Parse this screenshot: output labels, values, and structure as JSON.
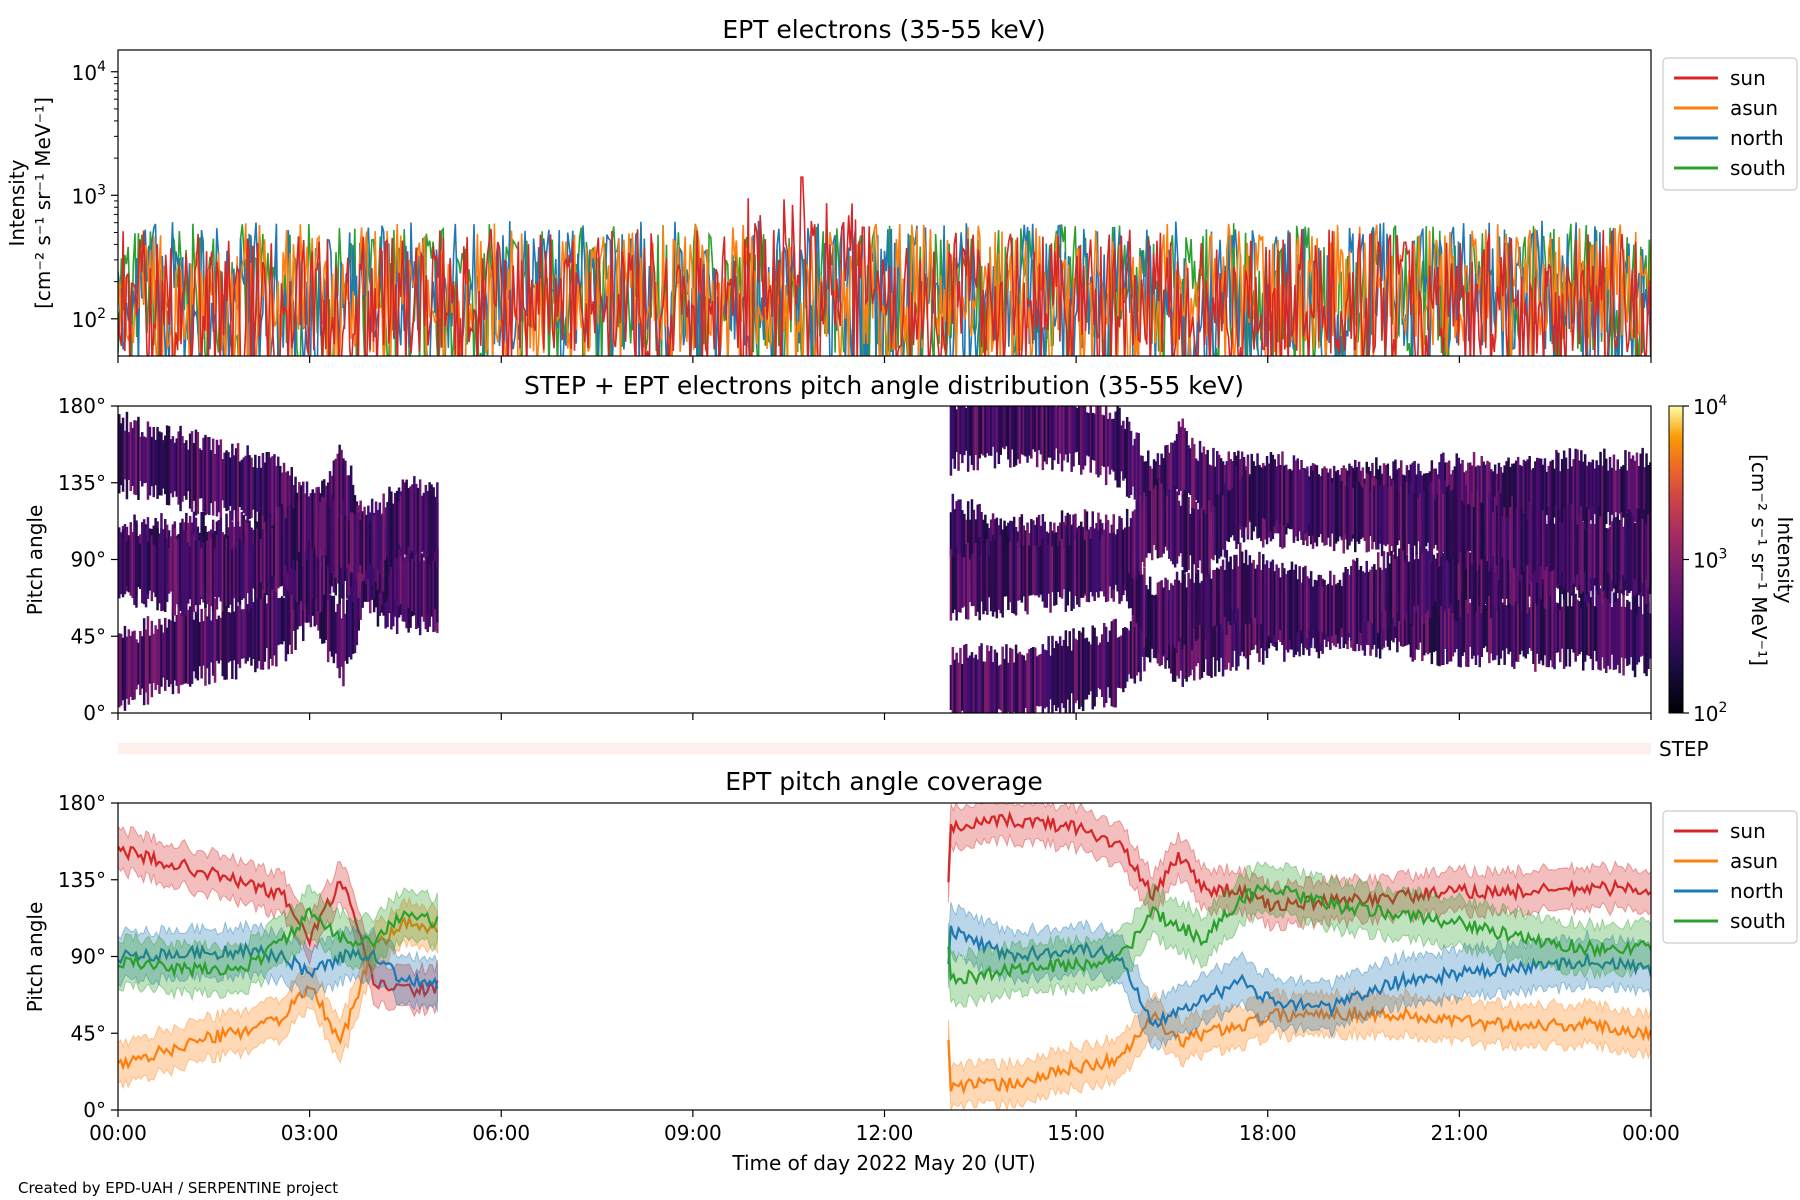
{
  "figure": {
    "credit": "Created by EPD-UAH / SERPENTINE project",
    "xlabel": "Time of day 2022 May 20 (UT)",
    "x_ticks": [
      "00:00",
      "03:00",
      "06:00",
      "09:00",
      "12:00",
      "15:00",
      "18:00",
      "21:00",
      "00:00"
    ]
  },
  "colors": {
    "sun": "#d62728",
    "asun": "#ff7f0e",
    "north": "#1f77b4",
    "south": "#2ca02c",
    "step_bar": "#fdf0ea"
  },
  "chart_data": [
    {
      "type": "line",
      "title": "EPT electrons (35-55 keV)",
      "ylabel_line1": "Intensity",
      "ylabel_line2": "[cm⁻² s⁻¹ sr⁻¹ MeV⁻¹]",
      "yscale": "log",
      "ylim": [
        50,
        15000
      ],
      "y_ticks": [
        {
          "value": 100,
          "base": "10",
          "exp": "2"
        },
        {
          "value": 1000,
          "base": "10",
          "exp": "3"
        },
        {
          "value": 10000,
          "base": "10",
          "exp": "4"
        }
      ],
      "xlim_hours": [
        0,
        24
      ],
      "legend": [
        "sun",
        "asun",
        "north",
        "south"
      ],
      "legend_position": "upper right, outside axes",
      "data_coverage_hours": [
        0,
        24
      ],
      "series": [
        {
          "name": "sun",
          "typical": 180,
          "max": 1400,
          "peak_hour": 10.7
        },
        {
          "name": "asun",
          "typical": 200,
          "max": 720
        },
        {
          "name": "north",
          "typical": 210,
          "max": 900
        },
        {
          "name": "south",
          "typical": 200,
          "max": 800
        }
      ]
    },
    {
      "type": "heatmap",
      "title": "STEP + EPT electrons pitch angle distribution (35-55 keV)",
      "ylabel": "Pitch angle",
      "ylim": [
        0,
        180
      ],
      "y_ticks": [
        "0°",
        "45°",
        "90°",
        "135°",
        "180°"
      ],
      "colorbar": {
        "label_line1": "Intensity",
        "label_line2": "[cm⁻² s⁻¹ sr⁻¹ MeV⁻¹]",
        "scale": "log",
        "range": [
          100,
          10000
        ],
        "ticks": [
          {
            "base": "10",
            "exp": "2"
          },
          {
            "base": "10",
            "exp": "3"
          },
          {
            "base": "10",
            "exp": "4"
          }
        ],
        "colormap": "inferno"
      },
      "data_gaps_hours": [
        [
          5.0,
          13.0
        ]
      ]
    },
    {
      "type": "bar",
      "label": "STEP",
      "note": "empty STEP coverage strip"
    },
    {
      "type": "area",
      "title": "EPT pitch angle coverage",
      "ylabel": "Pitch angle",
      "ylim": [
        0,
        180
      ],
      "y_ticks": [
        "0°",
        "45°",
        "90°",
        "135°",
        "180°"
      ],
      "legend": [
        "sun",
        "asun",
        "north",
        "south"
      ],
      "legend_position": "upper right, outside axes",
      "data_gaps_hours": [
        [
          5.0,
          13.0
        ]
      ],
      "x_hours": [
        0,
        1,
        2,
        2.6,
        3,
        3.5,
        4,
        4.5,
        5,
        13,
        14,
        15,
        15.7,
        16.2,
        16.6,
        17,
        17.6,
        18,
        19,
        20,
        21,
        22,
        23,
        24
      ],
      "series": [
        {
          "name": "sun",
          "values": [
            152,
            143,
            133,
            125,
            100,
            135,
            75,
            70,
            72,
            165,
            170,
            166,
            155,
            125,
            150,
            130,
            128,
            120,
            122,
            125,
            128,
            128,
            130,
            130
          ],
          "band": 12
        },
        {
          "name": "asun",
          "values": [
            25,
            38,
            47,
            55,
            72,
            40,
            95,
            110,
            105,
            15,
            15,
            25,
            30,
            55,
            40,
            45,
            50,
            55,
            57,
            56,
            52,
            50,
            50,
            45
          ],
          "band": 12
        },
        {
          "name": "north",
          "values": [
            90,
            92,
            93,
            90,
            80,
            90,
            92,
            75,
            75,
            105,
            90,
            95,
            90,
            50,
            60,
            65,
            75,
            65,
            60,
            75,
            80,
            83,
            88,
            82
          ],
          "band": 14
        },
        {
          "name": "south",
          "values": [
            88,
            82,
            83,
            100,
            115,
            100,
            100,
            115,
            110,
            75,
            83,
            85,
            90,
            115,
            108,
            100,
            125,
            130,
            120,
            115,
            110,
            100,
            95,
            95
          ],
          "band": 14
        }
      ]
    }
  ]
}
